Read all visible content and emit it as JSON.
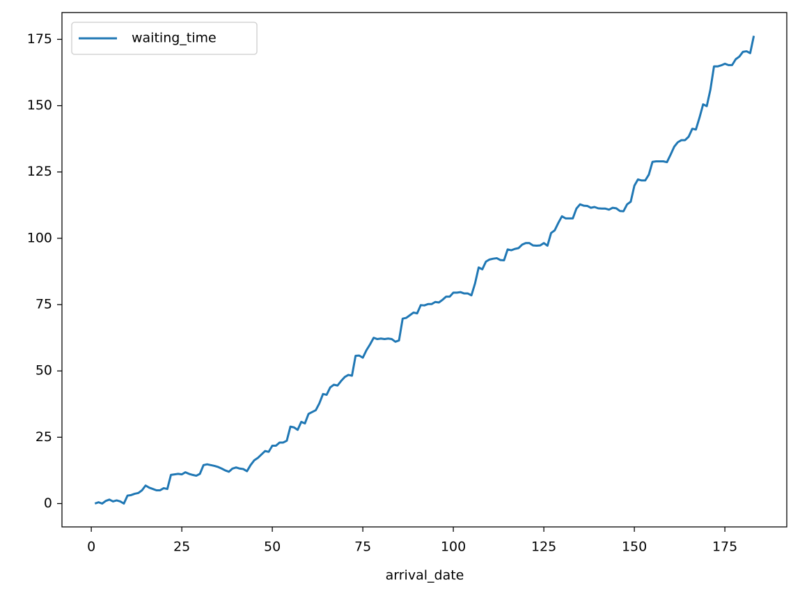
{
  "chart_data": {
    "type": "line",
    "x_label": "arrival_date",
    "x": [
      1,
      2,
      3,
      4,
      5,
      6,
      7,
      8,
      9,
      10,
      11,
      12,
      13,
      14,
      15,
      16,
      17,
      18,
      19,
      20,
      21,
      22,
      23,
      24,
      25,
      26,
      27,
      28,
      29,
      30,
      31,
      32,
      33,
      34,
      35,
      36,
      37,
      38,
      39,
      40,
      41,
      42,
      43,
      44,
      45,
      46,
      47,
      48,
      49,
      50,
      51,
      52,
      53,
      54,
      55,
      56,
      57,
      58,
      59,
      60,
      61,
      62,
      63,
      64,
      65,
      66,
      67,
      68,
      69,
      70,
      71,
      72,
      73,
      74,
      75,
      76,
      77,
      78,
      79,
      80,
      81,
      82,
      83,
      84,
      85,
      86,
      87,
      88,
      89,
      90,
      91,
      92,
      93,
      94,
      95,
      96,
      97,
      98,
      99,
      100,
      101,
      102,
      103,
      104,
      105,
      106,
      107,
      108,
      109,
      110,
      111,
      112,
      113,
      114,
      115,
      116,
      117,
      118,
      119,
      120,
      121,
      122,
      123,
      124,
      125,
      126,
      127,
      128,
      129,
      130,
      131,
      132,
      133,
      134,
      135,
      136,
      137,
      138,
      139,
      140,
      141,
      142,
      143,
      144,
      145,
      146,
      147,
      148,
      149,
      150,
      151,
      152,
      153,
      154,
      155,
      156,
      157,
      158,
      159,
      160,
      161,
      162,
      163,
      164,
      165,
      166,
      167,
      168,
      169,
      170,
      171,
      172,
      173,
      174,
      175,
      176,
      177,
      178,
      179,
      180,
      181,
      182,
      183
    ],
    "series": [
      {
        "name": "waiting_time",
        "color": "#1f77b4",
        "values": [
          0,
          0.5,
          0,
          1,
          1.5,
          0.8,
          1.2,
          0.8,
          0,
          3,
          3.2,
          3.7,
          4,
          5,
          6.8,
          6,
          5.5,
          5,
          5,
          5.8,
          5.5,
          10.8,
          11,
          11.2,
          11,
          11.8,
          11.2,
          10.8,
          10.5,
          11.2,
          14.5,
          14.8,
          14.5,
          14.2,
          13.8,
          13.2,
          12.5,
          12,
          13.2,
          13.6,
          13.2,
          13,
          12.2,
          14.5,
          16.3,
          17.2,
          18.5,
          19.8,
          19.5,
          21.8,
          21.8,
          23,
          23,
          23.7,
          29,
          28.7,
          27.8,
          30.8,
          30.2,
          33.8,
          34.5,
          35.2,
          37.8,
          41.3,
          41,
          43.8,
          44.8,
          44.5,
          46.2,
          47.7,
          48.5,
          48.2,
          55.7,
          55.8,
          55,
          57.8,
          60,
          62.5,
          62,
          62.2,
          62,
          62.2,
          62,
          61,
          61.5,
          69.7,
          70,
          71,
          72,
          71.7,
          74.8,
          74.7,
          75.2,
          75.2,
          76,
          75.8,
          76.8,
          78,
          78,
          79.5,
          79.5,
          79.7,
          79.2,
          79.2,
          78.5,
          83,
          89,
          88.3,
          91.2,
          92,
          92.3,
          92.5,
          91.8,
          91.7,
          95.8,
          95.5,
          96,
          96.3,
          97.6,
          98.2,
          98.2,
          97.3,
          97.2,
          97.3,
          98.2,
          97.2,
          102,
          103,
          105.8,
          108.3,
          107.5,
          107.5,
          107.5,
          111.2,
          112.8,
          112.3,
          112.2,
          111.5,
          111.8,
          111.3,
          111.2,
          111.2,
          110.8,
          111.5,
          111.3,
          110.3,
          110.2,
          112.8,
          113.8,
          119.8,
          122.2,
          121.8,
          121.8,
          124,
          128.8,
          129,
          129,
          129,
          128.7,
          131.5,
          134.5,
          136.2,
          137,
          137,
          138.3,
          141.3,
          141,
          145.5,
          150.5,
          149.8,
          156,
          164.8,
          164.8,
          165.2,
          165.8,
          165.3,
          165.3,
          167.5,
          168.5,
          170.3,
          170.5,
          169.8,
          176.3
        ]
      }
    ],
    "xlim": [
      -8.1,
      192.1
    ],
    "xticks": [
      0,
      25,
      50,
      75,
      100,
      125,
      150,
      175
    ],
    "ylim": [
      -8.8,
      185.1
    ],
    "yticks": [
      0,
      25,
      50,
      75,
      100,
      125,
      150,
      175
    ],
    "grid": false,
    "legend": "upper-left"
  }
}
